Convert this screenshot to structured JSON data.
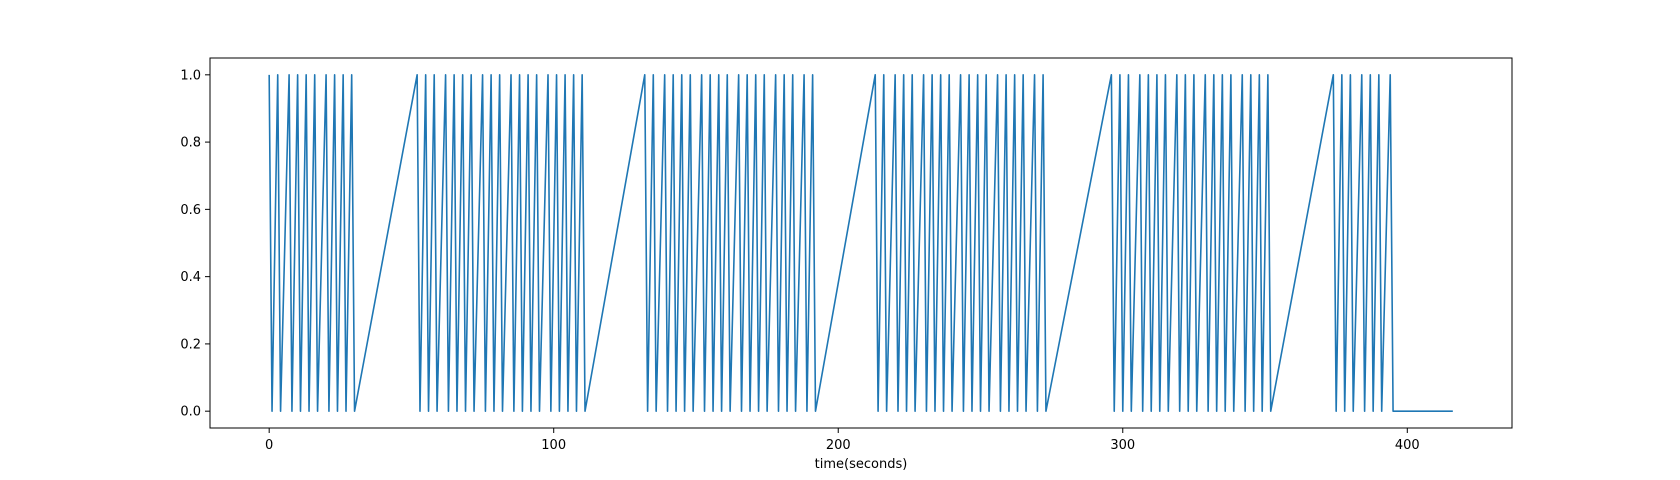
{
  "chart_data": {
    "type": "line",
    "title": "",
    "xlabel": "time(seconds)",
    "ylabel": "",
    "xlim": [
      -20.8,
      436.8
    ],
    "ylim": [
      -0.05,
      1.05
    ],
    "xticks": [
      0,
      100,
      200,
      300,
      400
    ],
    "yticks": [
      0.0,
      0.2,
      0.4,
      0.6,
      0.8,
      1.0
    ],
    "xtick_labels": [
      "0",
      "100",
      "200",
      "300",
      "400"
    ],
    "ytick_labels": [
      "0.0",
      "0.2",
      "0.4",
      "0.6",
      "0.8",
      "1.0"
    ],
    "grid": false,
    "line_color": "#1f77b4",
    "pulse_times": [
      0,
      3,
      7,
      10,
      13,
      16,
      20,
      23,
      26,
      29,
      52,
      55,
      58,
      62,
      65,
      68,
      71,
      75,
      78,
      81,
      85,
      88,
      91,
      94,
      98,
      101,
      104,
      107,
      110,
      132,
      135,
      139,
      142,
      145,
      148,
      152,
      155,
      158,
      161,
      165,
      168,
      171,
      174,
      178,
      181,
      184,
      188,
      191,
      213,
      216,
      220,
      223,
      226,
      230,
      233,
      236,
      239,
      243,
      246,
      249,
      252,
      256,
      259,
      262,
      265,
      269,
      272,
      296,
      299,
      302,
      306,
      309,
      312,
      315,
      319,
      322,
      325,
      329,
      332,
      335,
      338,
      342,
      345,
      348,
      351,
      374,
      377,
      380,
      384,
      387,
      390,
      394
    ],
    "end_time": 416
  }
}
